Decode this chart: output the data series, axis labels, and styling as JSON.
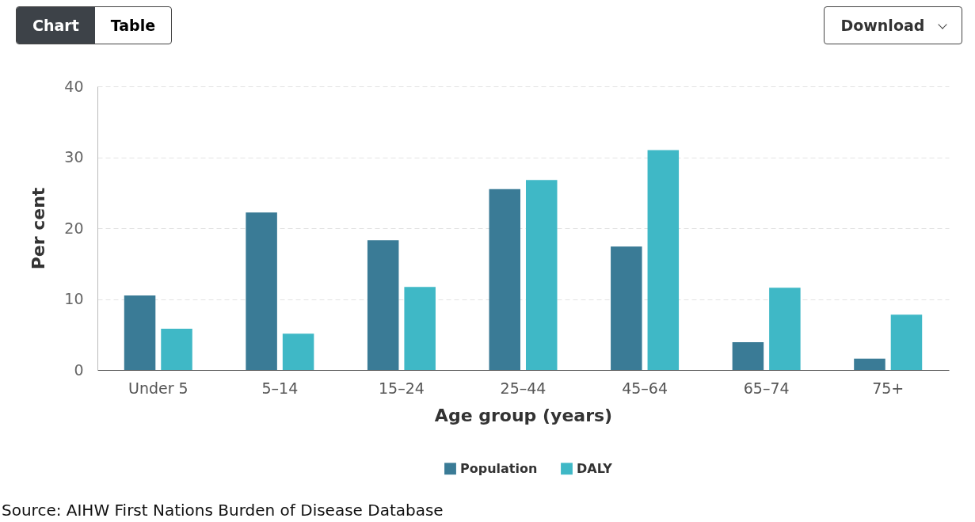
{
  "chart_data": {
    "type": "bar",
    "xlabel": "Age group (years)",
    "ylabel": "Per cent",
    "categories": [
      "Under 5",
      "5–14",
      "15–24",
      "25–44",
      "45–64",
      "65–74",
      "75+"
    ],
    "series": [
      {
        "name": "Population",
        "color": "#3a7b96",
        "values": [
          10.5,
          22.2,
          18.3,
          25.5,
          17.4,
          3.9,
          1.6
        ]
      },
      {
        "name": "DALY",
        "color": "#3fb8c6",
        "values": [
          5.8,
          5.1,
          11.7,
          26.8,
          31.0,
          11.6,
          7.8
        ]
      }
    ],
    "ylim": [
      0,
      40
    ],
    "yticks": [
      0,
      10,
      20,
      30,
      40
    ],
    "grid": "y",
    "legend": "bottom",
    "annotations": [
      "Chart",
      "Table",
      "Download",
      "Source: AIHW First Nations Burden of Disease Database"
    ]
  }
}
